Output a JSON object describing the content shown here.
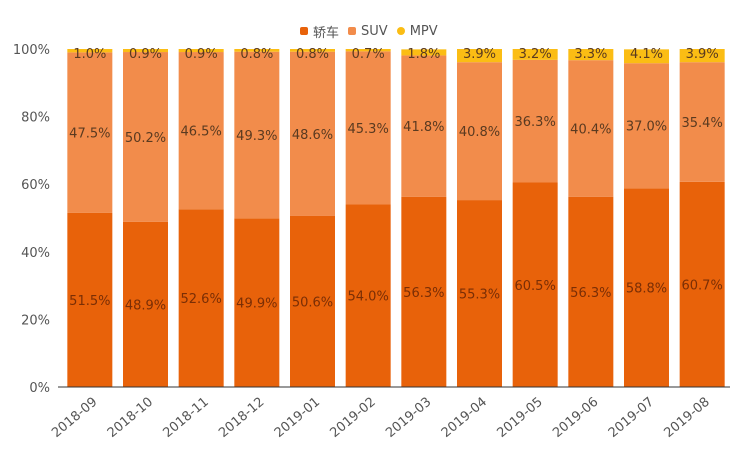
{
  "chart_data": {
    "type": "bar",
    "stacked": true,
    "title": "",
    "xlabel": "",
    "ylabel": "",
    "ylim": [
      0,
      100
    ],
    "yticks": [
      "0%",
      "20%",
      "40%",
      "60%",
      "80%",
      "100%"
    ],
    "ytick_values": [
      0,
      20,
      40,
      60,
      80,
      100
    ],
    "legend_position": "top-center",
    "grid": false,
    "categories": [
      "2018-09",
      "2018-10",
      "2018-11",
      "2018-12",
      "2019-01",
      "2019-02",
      "2019-03",
      "2019-04",
      "2019-05",
      "2019-06",
      "2019-07",
      "2019-08"
    ],
    "series": [
      {
        "name": "轿车",
        "color": "#e8620a",
        "values": [
          51.5,
          48.9,
          52.6,
          49.9,
          50.6,
          54.0,
          56.3,
          55.3,
          60.5,
          56.3,
          58.8,
          60.7
        ],
        "labels": [
          "51.5%",
          "48.9%",
          "52.6%",
          "49.9%",
          "50.6%",
          "54.0%",
          "56.3%",
          "55.3%",
          "60.5%",
          "56.3%",
          "58.8%",
          "60.7%"
        ]
      },
      {
        "name": "SUV",
        "color": "#f28c4b",
        "values": [
          47.5,
          50.2,
          46.5,
          49.3,
          48.6,
          45.3,
          41.8,
          40.8,
          36.3,
          40.4,
          37.0,
          35.4
        ],
        "labels": [
          "47.5%",
          "50.2%",
          "46.5%",
          "49.3%",
          "48.6%",
          "45.3%",
          "41.8%",
          "40.8%",
          "36.3%",
          "40.4%",
          "37.0%",
          "35.4%"
        ]
      },
      {
        "name": "MPV",
        "color": "#fbbd14",
        "values": [
          1.0,
          0.9,
          0.9,
          0.8,
          0.8,
          0.7,
          1.8,
          3.9,
          3.2,
          3.3,
          4.1,
          3.9
        ],
        "labels": [
          "1.0%",
          "0.9%",
          "0.9%",
          "0.8%",
          "0.8%",
          "0.7%",
          "1.8%",
          "3.9%",
          "3.2%",
          "3.3%",
          "4.1%",
          "3.9%"
        ]
      }
    ]
  }
}
